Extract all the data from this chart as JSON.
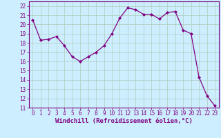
{
  "x": [
    0,
    1,
    2,
    3,
    4,
    5,
    6,
    7,
    8,
    9,
    10,
    11,
    12,
    13,
    14,
    15,
    16,
    17,
    18,
    19,
    20,
    21,
    22,
    23
  ],
  "y": [
    20.5,
    18.3,
    18.4,
    18.7,
    17.7,
    16.5,
    16.0,
    16.5,
    17.0,
    17.7,
    19.0,
    20.7,
    21.8,
    21.6,
    21.1,
    21.1,
    20.6,
    21.3,
    21.4,
    19.4,
    19.0,
    14.3,
    12.3,
    11.2
  ],
  "line_color": "#800080",
  "marker": "D",
  "marker_size": 2,
  "bg_color": "#cceeff",
  "grid_color": "#b0ccbb",
  "xlabel": "Windchill (Refroidissement éolien,°C)",
  "ylim": [
    11,
    22.5
  ],
  "xlim": [
    -0.5,
    23.5
  ],
  "yticks": [
    11,
    12,
    13,
    14,
    15,
    16,
    17,
    18,
    19,
    20,
    21,
    22
  ],
  "xticks": [
    0,
    1,
    2,
    3,
    4,
    5,
    6,
    7,
    8,
    9,
    10,
    11,
    12,
    13,
    14,
    15,
    16,
    17,
    18,
    19,
    20,
    21,
    22,
    23
  ],
  "tick_fontsize": 5.5,
  "xlabel_fontsize": 6.5,
  "tick_color": "#800080",
  "spine_color": "#800080",
  "linewidth": 0.9
}
